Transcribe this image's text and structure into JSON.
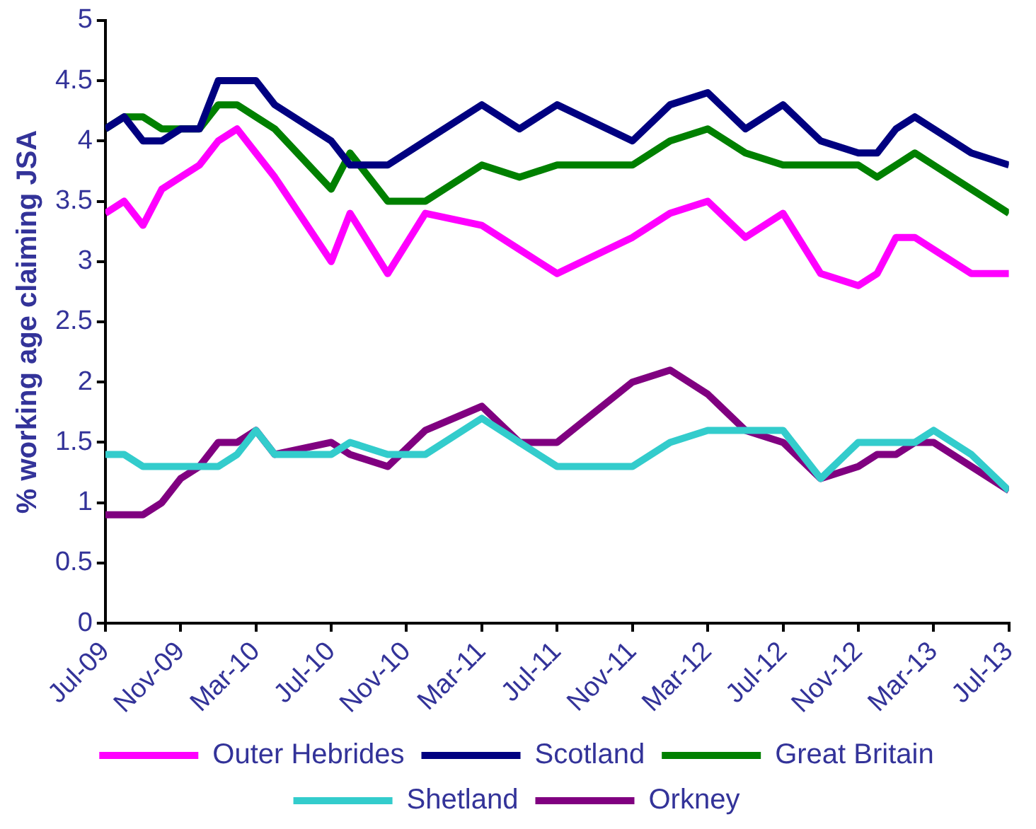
{
  "chart_data": {
    "type": "line",
    "ylabel": "% working age claiming JSA",
    "legend": "bottom",
    "grid": false,
    "marker": "none",
    "line_style": "solid",
    "x": [
      "2009-07",
      "2009-08",
      "2009-09",
      "2009-10",
      "2009-11",
      "2009-12",
      "2010-01",
      "2010-02",
      "2010-03",
      "2010-04",
      "2010-07",
      "2010-08",
      "2010-10",
      "2010-12",
      "2011-03",
      "2011-05",
      "2011-07",
      "2011-11",
      "2012-01",
      "2012-03",
      "2012-05",
      "2012-07",
      "2012-09",
      "2012-11",
      "2012-12",
      "2013-01",
      "2013-02",
      "2013-03",
      "2013-05",
      "2013-07"
    ],
    "xlim": [
      "2009-07",
      "2013-07"
    ],
    "xticks": [
      {
        "value": "2009-07",
        "label": "Jul-09"
      },
      {
        "value": "2009-11",
        "label": "Nov-09"
      },
      {
        "value": "2010-03",
        "label": "Mar-10"
      },
      {
        "value": "2010-07",
        "label": "Jul-10"
      },
      {
        "value": "2010-11",
        "label": "Nov-10"
      },
      {
        "value": "2011-03",
        "label": "Mar-11"
      },
      {
        "value": "2011-07",
        "label": "Jul-11"
      },
      {
        "value": "2011-11",
        "label": "Nov-11"
      },
      {
        "value": "2012-03",
        "label": "Mar-12"
      },
      {
        "value": "2012-07",
        "label": "Jul-12"
      },
      {
        "value": "2012-11",
        "label": "Nov-12"
      },
      {
        "value": "2013-03",
        "label": "Mar-13"
      },
      {
        "value": "2013-07",
        "label": "Jul-13"
      }
    ],
    "ylim": [
      0,
      5
    ],
    "yticks": [
      0,
      0.5,
      1,
      1.5,
      2,
      2.5,
      3,
      3.5,
      4,
      4.5,
      5
    ],
    "series": [
      {
        "name": "Outer Hebrides",
        "color": "#ff00ff",
        "values": [
          3.4,
          3.5,
          3.3,
          3.6,
          3.7,
          3.8,
          4.0,
          4.1,
          3.9,
          3.7,
          3.0,
          3.4,
          2.9,
          3.4,
          3.3,
          3.1,
          2.9,
          3.2,
          3.4,
          3.5,
          3.2,
          3.4,
          2.9,
          2.8,
          2.9,
          3.2,
          3.2,
          3.1,
          2.9,
          2.9
        ]
      },
      {
        "name": "Scotland",
        "color": "#000080",
        "values": [
          4.1,
          4.2,
          4.0,
          4.0,
          4.1,
          4.1,
          4.5,
          4.5,
          4.5,
          4.3,
          4.0,
          3.8,
          3.8,
          4.0,
          4.3,
          4.1,
          4.3,
          4.0,
          4.3,
          4.4,
          4.1,
          4.3,
          4.0,
          3.9,
          3.9,
          4.1,
          4.2,
          4.1,
          3.9,
          3.8
        ]
      },
      {
        "name": "Great Britain",
        "color": "#008000",
        "values": [
          4.1,
          4.2,
          4.2,
          4.1,
          4.1,
          4.1,
          4.3,
          4.3,
          4.2,
          4.1,
          3.6,
          3.9,
          3.5,
          3.5,
          3.8,
          3.7,
          3.8,
          3.8,
          4.0,
          4.1,
          3.9,
          3.8,
          3.8,
          3.8,
          3.7,
          3.8,
          3.9,
          3.8,
          3.6,
          3.4
        ]
      },
      {
        "name": "Shetland",
        "color": "#33cccc",
        "values": [
          1.4,
          1.4,
          1.3,
          1.3,
          1.3,
          1.3,
          1.3,
          1.4,
          1.6,
          1.4,
          1.4,
          1.5,
          1.4,
          1.4,
          1.7,
          1.5,
          1.3,
          1.3,
          1.5,
          1.6,
          1.6,
          1.6,
          1.2,
          1.5,
          1.5,
          1.5,
          1.5,
          1.6,
          1.4,
          1.1
        ]
      },
      {
        "name": "Orkney",
        "color": "#800080",
        "values": [
          0.9,
          0.9,
          0.9,
          1.0,
          1.2,
          1.3,
          1.5,
          1.5,
          1.6,
          1.4,
          1.5,
          1.4,
          1.3,
          1.6,
          1.8,
          1.5,
          1.5,
          2.0,
          2.1,
          1.9,
          1.6,
          1.5,
          1.2,
          1.3,
          1.4,
          1.4,
          1.5,
          1.5,
          1.3,
          1.1
        ]
      }
    ]
  }
}
